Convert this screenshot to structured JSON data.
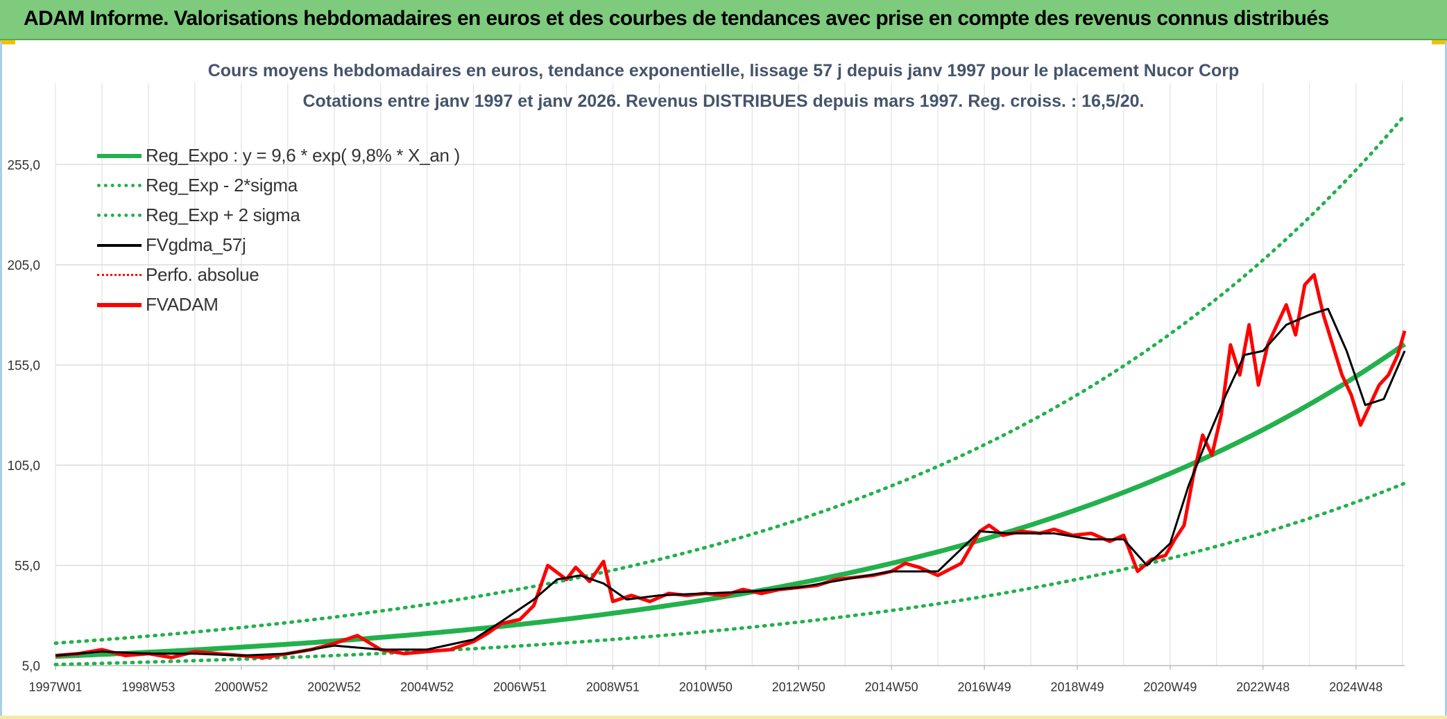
{
  "banner": {
    "title": "ADAM Informe. Valorisations hebdomadaires en euros et des courbes de tendances avec prise en compte des revenus connus distribués"
  },
  "chart_data": {
    "type": "line",
    "title": "Cours moyens hebdomadaires en euros, tendance exponentielle, lissage 57 j depuis janv 1997 pour le placement Nucor Corp",
    "subtitle": "Cotations entre janv 1997 et janv 2026. Revenus DISTRIBUES depuis mars 1997. Reg. croiss. : 16,5/20.",
    "xlabel": "",
    "ylabel": "",
    "x_range": [
      1997.0,
      2026.05
    ],
    "ylim": [
      5,
      280
    ],
    "y_ticks": [
      5,
      55,
      105,
      155,
      205,
      255
    ],
    "y_tick_labels": [
      "5,0",
      "55,0",
      "105,0",
      "155,0",
      "205,0",
      "255,0"
    ],
    "x_tick_labels": [
      "1997W01",
      "1998W53",
      "2000W52",
      "2002W52",
      "2004W52",
      "2006W51",
      "2008W51",
      "2010W50",
      "2012W50",
      "2014W50",
      "2016W49",
      "2018W49",
      "2020W49",
      "2022W48",
      "2024W48"
    ],
    "x_tick_years": [
      1997.0,
      1999.0,
      2001.0,
      2003.0,
      2005.0,
      2007.0,
      2009.0,
      2011.0,
      2013.0,
      2015.0,
      2017.0,
      2019.0,
      2021.0,
      2023.0,
      2025.0
    ],
    "grid": true,
    "legend_position": "top-left",
    "legend": [
      {
        "label": "Reg_Expo : y = 9,6 * exp( 9,8% *  X_an )",
        "color": "#22b14c",
        "style": "solid-thick"
      },
      {
        "label": "Reg_Exp - 2*sigma",
        "color": "#22b14c",
        "style": "dotted"
      },
      {
        "label": "Reg_Exp + 2 sigma",
        "color": "#22b14c",
        "style": "dotted"
      },
      {
        "label": "FVgdma_57j",
        "color": "#000000",
        "style": "solid"
      },
      {
        "label": "Perfo. absolue",
        "color": "#ff0000",
        "style": "dotted"
      },
      {
        "label": "FVADAM",
        "color": "#ff0000",
        "style": "solid-thick"
      }
    ],
    "regression": {
      "a": 9.6,
      "rate": 0.098,
      "minus_2sigma_factor": 0.58,
      "plus_2sigma_factor": 1.69
    },
    "series": [
      {
        "name": "FVADAM",
        "years": [
          1997.0,
          1997.5,
          1998.0,
          1998.5,
          1999.0,
          1999.5,
          2000.0,
          2000.5,
          2001.0,
          2001.5,
          2002.0,
          2002.5,
          2003.0,
          2003.5,
          2004.0,
          2004.5,
          2005.0,
          2005.5,
          2006.0,
          2006.3,
          2006.6,
          2007.0,
          2007.3,
          2007.6,
          2008.0,
          2008.2,
          2008.5,
          2008.8,
          2009.0,
          2009.4,
          2009.8,
          2010.2,
          2010.6,
          2011.0,
          2011.4,
          2011.8,
          2012.2,
          2012.6,
          2013.0,
          2013.4,
          2013.8,
          2014.2,
          2014.6,
          2015.0,
          2015.3,
          2015.6,
          2016.0,
          2016.5,
          2016.9,
          2017.1,
          2017.4,
          2017.8,
          2018.2,
          2018.5,
          2018.9,
          2019.3,
          2019.7,
          2020.0,
          2020.3,
          2020.6,
          2020.9,
          2021.1,
          2021.3,
          2021.5,
          2021.7,
          2021.9,
          2022.1,
          2022.3,
          2022.5,
          2022.7,
          2022.9,
          2023.1,
          2023.3,
          2023.5,
          2023.7,
          2023.9,
          2024.1,
          2024.3,
          2024.5,
          2024.7,
          2024.9,
          2025.1,
          2025.3,
          2025.5,
          2025.7,
          2025.9,
          2026.05
        ],
        "values": [
          10,
          11,
          13,
          10,
          11,
          9,
          12,
          11,
          10,
          9,
          11,
          13,
          16,
          20,
          13,
          11,
          12,
          13,
          17,
          21,
          26,
          28,
          35,
          55,
          48,
          54,
          47,
          57,
          37,
          40,
          37,
          41,
          40,
          41,
          40,
          43,
          41,
          43,
          44,
          45,
          48,
          49,
          50,
          52,
          56,
          54,
          50,
          56,
          72,
          75,
          70,
          72,
          71,
          73,
          70,
          71,
          67,
          70,
          52,
          58,
          60,
          68,
          75,
          100,
          120,
          110,
          130,
          165,
          150,
          175,
          145,
          165,
          175,
          185,
          170,
          195,
          200,
          180,
          165,
          150,
          140,
          125,
          135,
          145,
          150,
          160,
          172
        ]
      },
      {
        "name": "FVgdma_57j",
        "years": [
          1997.0,
          1998.0,
          1999.0,
          2000.0,
          2001.0,
          2002.0,
          2003.0,
          2004.0,
          2005.0,
          2006.0,
          2006.6,
          2007.3,
          2007.8,
          2008.3,
          2008.8,
          2009.3,
          2010.0,
          2011.0,
          2012.0,
          2013.0,
          2014.0,
          2015.0,
          2016.0,
          2016.9,
          2017.5,
          2018.5,
          2019.3,
          2020.0,
          2020.5,
          2021.0,
          2021.4,
          2021.8,
          2022.2,
          2022.6,
          2023.0,
          2023.5,
          2024.0,
          2024.4,
          2024.8,
          2025.2,
          2025.6,
          2026.05
        ],
        "values": [
          10,
          12,
          11,
          11,
          10,
          11,
          15,
          13,
          13,
          18,
          27,
          38,
          48,
          50,
          46,
          38,
          40,
          41,
          42,
          44,
          48,
          52,
          52,
          72,
          71,
          71,
          68,
          68,
          55,
          66,
          95,
          118,
          140,
          160,
          162,
          175,
          180,
          183,
          162,
          135,
          138,
          162
        ]
      }
    ]
  }
}
